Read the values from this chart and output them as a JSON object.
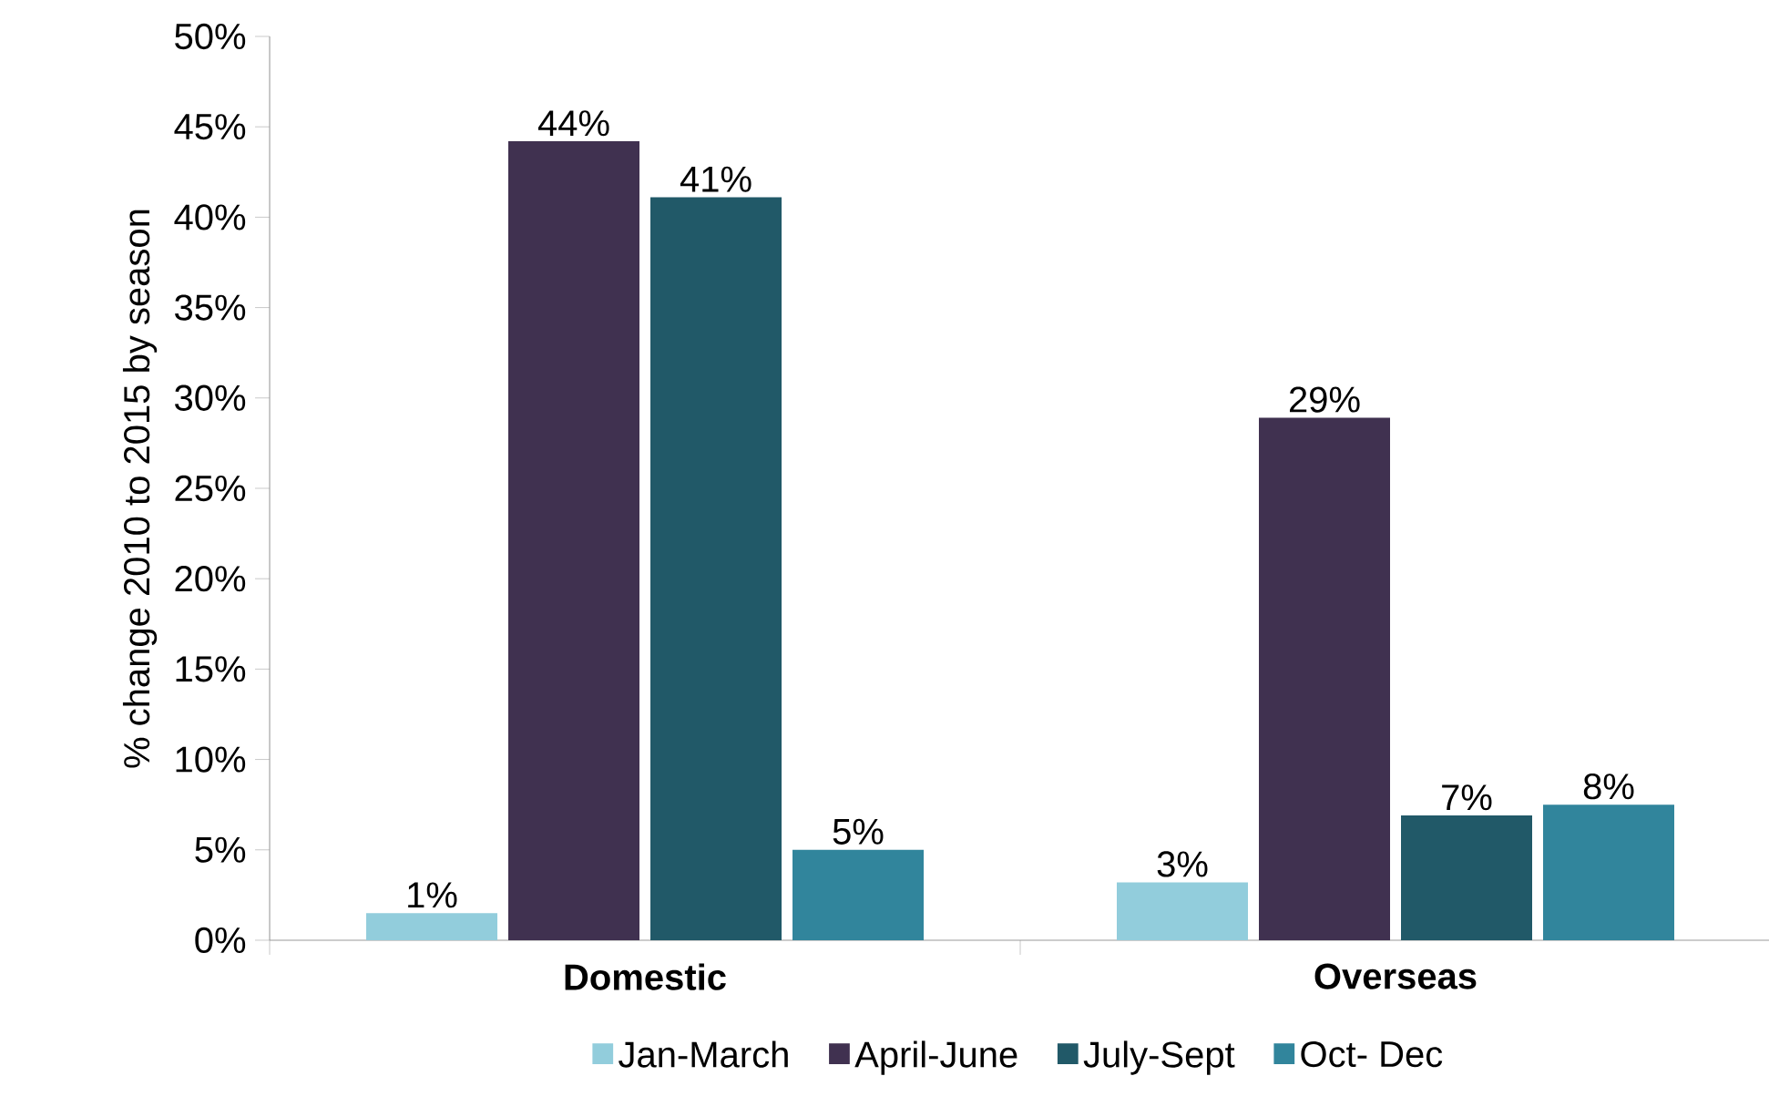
{
  "chart_data": {
    "type": "bar",
    "ylabel": "% change 2010 to 2015 by season",
    "categories": [
      "Domestic",
      "Overseas"
    ],
    "series": [
      {
        "name": "Jan-March",
        "color": "#92cddc",
        "values": [
          1.5,
          3.2
        ],
        "value_labels": [
          "1%",
          "3%"
        ]
      },
      {
        "name": "April-June",
        "color": "#403150",
        "values": [
          44.2,
          28.9
        ],
        "value_labels": [
          "44%",
          "29%"
        ]
      },
      {
        "name": "July-Sept",
        "color": "#215968",
        "values": [
          41.1,
          6.9
        ],
        "value_labels": [
          "41%",
          "7%"
        ]
      },
      {
        "name": "Oct- Dec",
        "color": "#31859c",
        "values": [
          5.0,
          7.5
        ],
        "value_labels": [
          "5%",
          "8%"
        ]
      }
    ],
    "ylim": [
      0,
      50
    ],
    "yticks": [
      {
        "value": 0,
        "label": "0%"
      },
      {
        "value": 5,
        "label": "5%"
      },
      {
        "value": 10,
        "label": "10%"
      },
      {
        "value": 15,
        "label": "15%"
      },
      {
        "value": 20,
        "label": "20%"
      },
      {
        "value": 25,
        "label": "25%"
      },
      {
        "value": 30,
        "label": "30%"
      },
      {
        "value": 35,
        "label": "35%"
      },
      {
        "value": 40,
        "label": "40%"
      },
      {
        "value": 45,
        "label": "45%"
      },
      {
        "value": 50,
        "label": "50%"
      }
    ],
    "grid": false,
    "legend": "bottom"
  }
}
